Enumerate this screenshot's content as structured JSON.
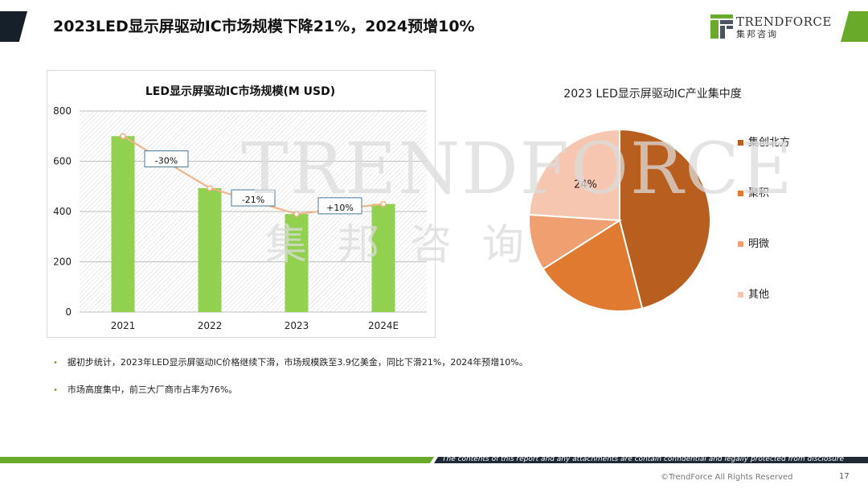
{
  "page": {
    "title": "2023LED显示屏驱动IC市场规模下降21%，2024预增10%",
    "accent_green": "#6aaa2a",
    "accent_dark": "#15202b"
  },
  "logo": {
    "name": "TRENDFORCE",
    "sub": "集邦咨询",
    "icon": "trendforce-logo-icon"
  },
  "watermark": {
    "text": "TRENDFORCE",
    "sub": "集邦咨询"
  },
  "chart_data": [
    {
      "type": "bar",
      "title": "LED显示屏驱动IC市场规模(M USD)",
      "categories": [
        "2021",
        "2022",
        "2023",
        "2024E"
      ],
      "values": [
        700,
        493,
        390,
        430
      ],
      "ylim": [
        0,
        800
      ],
      "yticks": [
        "0",
        "200",
        "400",
        "600",
        "800"
      ],
      "grid": true,
      "bar_color": "#92d050",
      "trend_line_color": "#f4b183",
      "annotations": [
        "-30%",
        "-21%",
        "+10%"
      ]
    },
    {
      "type": "pie",
      "title": "2023 LED显示屏驱动IC产业集中度",
      "labels": [
        "集创北方",
        "聚积",
        "明微",
        "其他"
      ],
      "values": [
        46,
        20,
        10,
        24
      ],
      "colors": [
        "#b85e1e",
        "#e07a30",
        "#f0a070",
        "#f6c6b0"
      ],
      "data_labels": [
        "",
        "",
        "",
        "24%"
      ],
      "legend_position": "right"
    }
  ],
  "bullets": [
    "据初步统计，2023年LED显示屏驱动IC价格继续下滑，市场规模跌至3.9亿美金，同比下滑21%，2024年预增10%。",
    "市场高度集中，前三大厂商市占率为76%。"
  ],
  "footer": {
    "confidential": "The contents of this report and any attachments are contain confidential and legally protected from disclosure",
    "copyright": "©TrendForce All Rights Reserved",
    "page_number": "17"
  }
}
